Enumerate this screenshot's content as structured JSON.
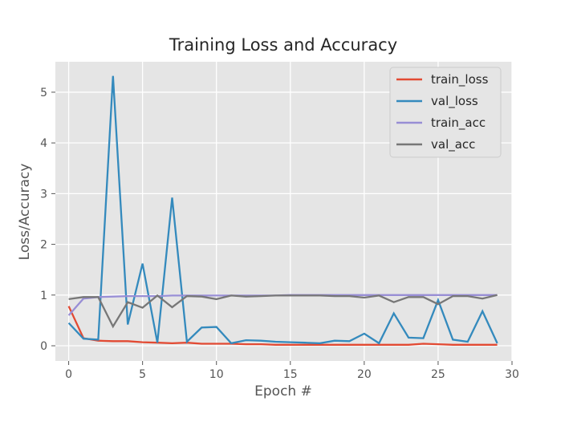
{
  "chart_data": {
    "type": "line",
    "title": "Training Loss and Accuracy",
    "xlabel": "Epoch #",
    "ylabel": "Loss/Accuracy",
    "xlim": [
      -0.9,
      30
    ],
    "ylim": [
      -0.3,
      5.6
    ],
    "xticks": [
      0,
      5,
      10,
      15,
      20,
      25,
      30
    ],
    "yticks": [
      0,
      1,
      2,
      3,
      4,
      5
    ],
    "grid": true,
    "legend_position": "top-right",
    "x": [
      0,
      1,
      2,
      3,
      4,
      5,
      6,
      7,
      8,
      9,
      10,
      11,
      12,
      13,
      14,
      15,
      16,
      17,
      18,
      19,
      20,
      21,
      22,
      23,
      24,
      25,
      26,
      27,
      28,
      29
    ],
    "series": [
      {
        "name": "train_loss",
        "color": "#e24a33",
        "values": [
          0.78,
          0.15,
          0.1,
          0.09,
          0.09,
          0.07,
          0.06,
          0.05,
          0.06,
          0.04,
          0.04,
          0.04,
          0.03,
          0.03,
          0.02,
          0.02,
          0.02,
          0.02,
          0.02,
          0.02,
          0.02,
          0.02,
          0.02,
          0.02,
          0.04,
          0.03,
          0.02,
          0.02,
          0.02,
          0.02
        ]
      },
      {
        "name": "val_loss",
        "color": "#348abd",
        "values": [
          0.45,
          0.14,
          0.12,
          5.32,
          0.42,
          1.62,
          0.06,
          2.92,
          0.08,
          0.36,
          0.37,
          0.05,
          0.11,
          0.1,
          0.08,
          0.07,
          0.06,
          0.05,
          0.1,
          0.09,
          0.24,
          0.05,
          0.64,
          0.16,
          0.15,
          0.9,
          0.12,
          0.08,
          0.68,
          0.05
        ]
      },
      {
        "name": "train_acc",
        "color": "#988ed5",
        "values": [
          0.6,
          0.93,
          0.96,
          0.97,
          0.98,
          0.98,
          0.98,
          0.99,
          0.99,
          0.99,
          0.99,
          0.99,
          0.99,
          0.99,
          0.99,
          1.0,
          1.0,
          1.0,
          1.0,
          1.0,
          1.0,
          1.0,
          1.0,
          1.0,
          1.0,
          1.0,
          1.0,
          1.0,
          1.0,
          1.0
        ]
      },
      {
        "name": "val_acc",
        "color": "#777777",
        "values": [
          0.92,
          0.96,
          0.96,
          0.38,
          0.86,
          0.75,
          0.99,
          0.76,
          0.98,
          0.97,
          0.92,
          0.99,
          0.97,
          0.98,
          0.99,
          0.99,
          0.99,
          0.99,
          0.98,
          0.98,
          0.95,
          0.99,
          0.86,
          0.96,
          0.96,
          0.82,
          0.98,
          0.98,
          0.93,
          1.0
        ]
      }
    ]
  }
}
